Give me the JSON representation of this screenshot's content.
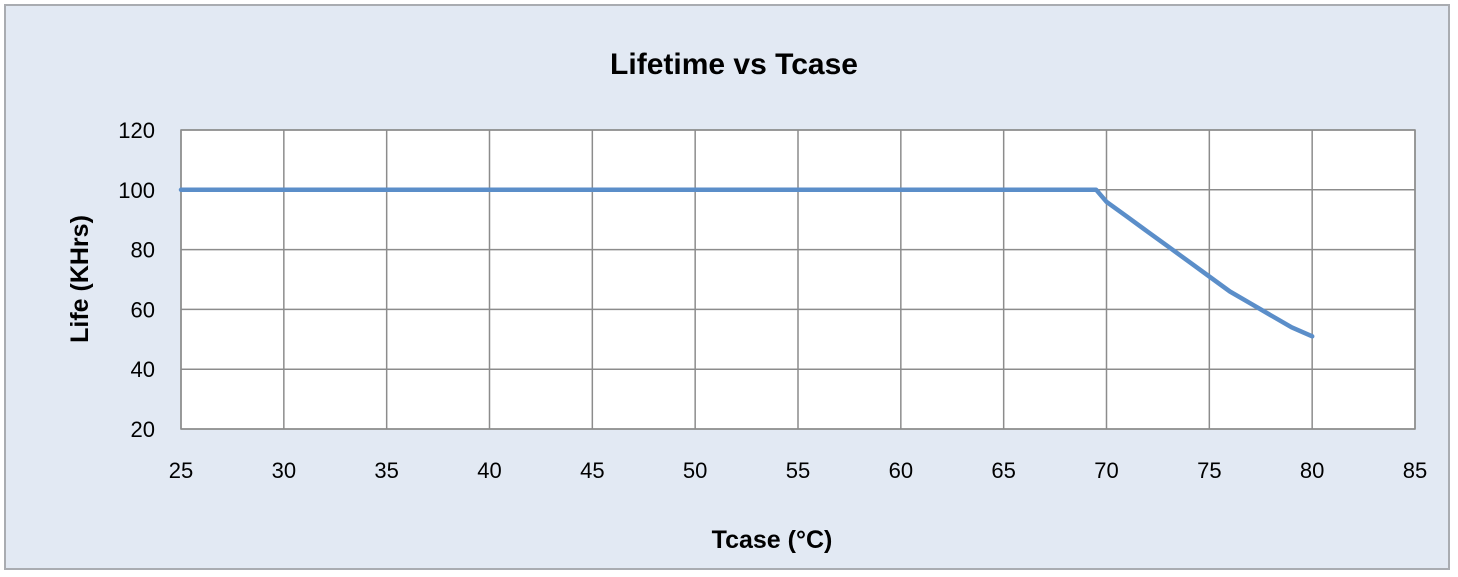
{
  "chart_data": {
    "type": "line",
    "title": "Lifetime vs Tcase",
    "xlabel": "Tcase (°C)",
    "ylabel": "Life (KHrs)",
    "xlim": [
      25,
      85
    ],
    "ylim": [
      20,
      120
    ],
    "xticks": [
      "25",
      "30",
      "35",
      "40",
      "45",
      "50",
      "55",
      "60",
      "65",
      "70",
      "75",
      "80",
      "85"
    ],
    "yticks": [
      "20",
      "40",
      "60",
      "80",
      "100",
      "120"
    ],
    "grid": true,
    "legend": "none",
    "series": [
      {
        "color": "#5b8ec9",
        "x": [
          25,
          69.5,
          70,
          71,
          72,
          73,
          74,
          75,
          76,
          77,
          78,
          79,
          80
        ],
        "y": [
          100,
          100,
          96,
          91,
          86,
          81,
          76,
          71,
          66,
          62,
          58,
          54,
          51
        ]
      }
    ]
  }
}
